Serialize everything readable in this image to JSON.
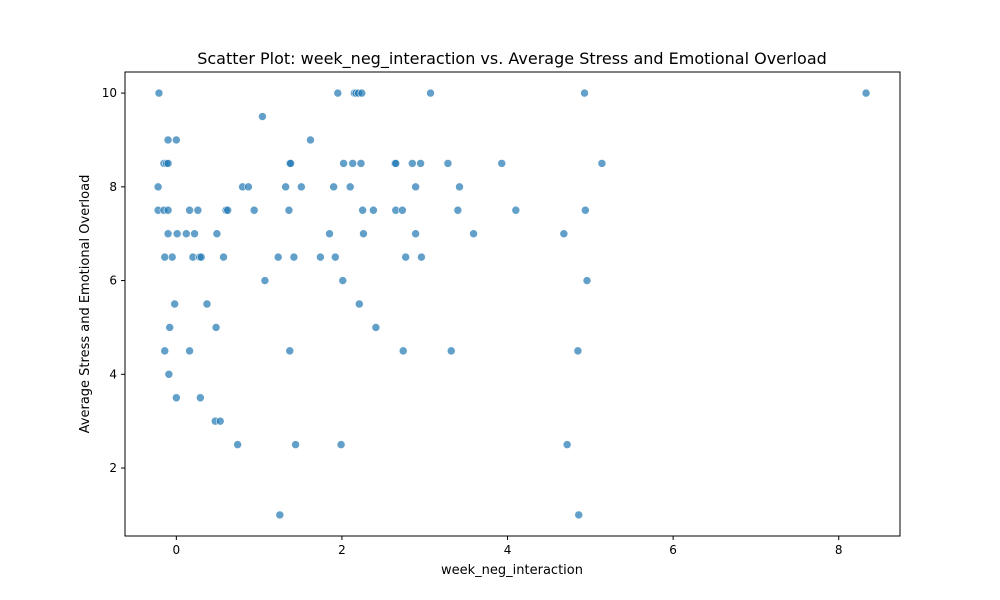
{
  "chart_data": {
    "type": "scatter",
    "title": "Scatter Plot: week_neg_interaction vs. Average Stress and Emotional Overload",
    "xlabel": "week_neg_interaction",
    "ylabel": "Average Stress and Emotional Overload",
    "xlim": [
      -0.62,
      8.74
    ],
    "ylim": [
      0.55,
      10.45
    ],
    "xticks": [
      0,
      2,
      4,
      6,
      8
    ],
    "yticks": [
      2,
      4,
      6,
      8,
      10
    ],
    "grid": false,
    "legend": "none",
    "series": [
      {
        "color": "#1f77b4",
        "opacity": 0.7,
        "points": [
          [
            -0.21,
            10.0
          ],
          [
            1.95,
            10.0
          ],
          [
            2.15,
            10.0
          ],
          [
            2.17,
            10.0
          ],
          [
            2.2,
            10.0
          ],
          [
            2.24,
            10.0
          ],
          [
            3.07,
            10.0
          ],
          [
            4.93,
            10.0
          ],
          [
            8.33,
            10.0
          ],
          [
            1.04,
            9.5
          ],
          [
            -0.1,
            9.0
          ],
          [
            0.0,
            9.0
          ],
          [
            1.62,
            9.0
          ],
          [
            -0.15,
            8.5
          ],
          [
            -0.12,
            8.5
          ],
          [
            -0.1,
            8.5
          ],
          [
            1.37,
            8.5
          ],
          [
            1.38,
            8.5
          ],
          [
            2.02,
            8.5
          ],
          [
            2.13,
            8.5
          ],
          [
            2.23,
            8.5
          ],
          [
            2.64,
            8.5
          ],
          [
            2.65,
            8.5
          ],
          [
            2.85,
            8.5
          ],
          [
            2.95,
            8.5
          ],
          [
            3.28,
            8.5
          ],
          [
            3.93,
            8.5
          ],
          [
            5.14,
            8.5
          ],
          [
            -0.22,
            8.0
          ],
          [
            0.8,
            8.0
          ],
          [
            0.87,
            8.0
          ],
          [
            1.32,
            8.0
          ],
          [
            1.51,
            8.0
          ],
          [
            1.9,
            8.0
          ],
          [
            2.1,
            8.0
          ],
          [
            2.89,
            8.0
          ],
          [
            3.42,
            8.0
          ],
          [
            -0.22,
            7.5
          ],
          [
            -0.15,
            7.5
          ],
          [
            -0.1,
            7.5
          ],
          [
            0.16,
            7.5
          ],
          [
            0.26,
            7.5
          ],
          [
            0.6,
            7.5
          ],
          [
            0.62,
            7.5
          ],
          [
            0.94,
            7.5
          ],
          [
            1.36,
            7.5
          ],
          [
            2.25,
            7.5
          ],
          [
            2.38,
            7.5
          ],
          [
            2.65,
            7.5
          ],
          [
            2.73,
            7.5
          ],
          [
            3.4,
            7.5
          ],
          [
            4.1,
            7.5
          ],
          [
            4.94,
            7.5
          ],
          [
            -0.1,
            7.0
          ],
          [
            0.01,
            7.0
          ],
          [
            0.12,
            7.0
          ],
          [
            0.22,
            7.0
          ],
          [
            0.49,
            7.0
          ],
          [
            1.85,
            7.0
          ],
          [
            2.26,
            7.0
          ],
          [
            2.89,
            7.0
          ],
          [
            3.59,
            7.0
          ],
          [
            4.68,
            7.0
          ],
          [
            -0.14,
            6.5
          ],
          [
            -0.05,
            6.5
          ],
          [
            0.2,
            6.5
          ],
          [
            0.28,
            6.5
          ],
          [
            0.3,
            6.5
          ],
          [
            0.57,
            6.5
          ],
          [
            1.23,
            6.5
          ],
          [
            1.42,
            6.5
          ],
          [
            1.74,
            6.5
          ],
          [
            1.92,
            6.5
          ],
          [
            2.77,
            6.5
          ],
          [
            2.96,
            6.5
          ],
          [
            1.07,
            6.0
          ],
          [
            2.01,
            6.0
          ],
          [
            4.96,
            6.0
          ],
          [
            -0.02,
            5.5
          ],
          [
            0.37,
            5.5
          ],
          [
            2.21,
            5.5
          ],
          [
            -0.08,
            5.0
          ],
          [
            0.48,
            5.0
          ],
          [
            2.41,
            5.0
          ],
          [
            -0.14,
            4.5
          ],
          [
            0.16,
            4.5
          ],
          [
            1.37,
            4.5
          ],
          [
            2.74,
            4.5
          ],
          [
            3.32,
            4.5
          ],
          [
            4.85,
            4.5
          ],
          [
            -0.09,
            4.0
          ],
          [
            0.0,
            3.5
          ],
          [
            0.29,
            3.5
          ],
          [
            0.47,
            3.0
          ],
          [
            0.53,
            3.0
          ],
          [
            0.74,
            2.5
          ],
          [
            1.44,
            2.5
          ],
          [
            1.99,
            2.5
          ],
          [
            4.72,
            2.5
          ],
          [
            1.25,
            1.0
          ],
          [
            4.86,
            1.0
          ]
        ]
      }
    ]
  }
}
